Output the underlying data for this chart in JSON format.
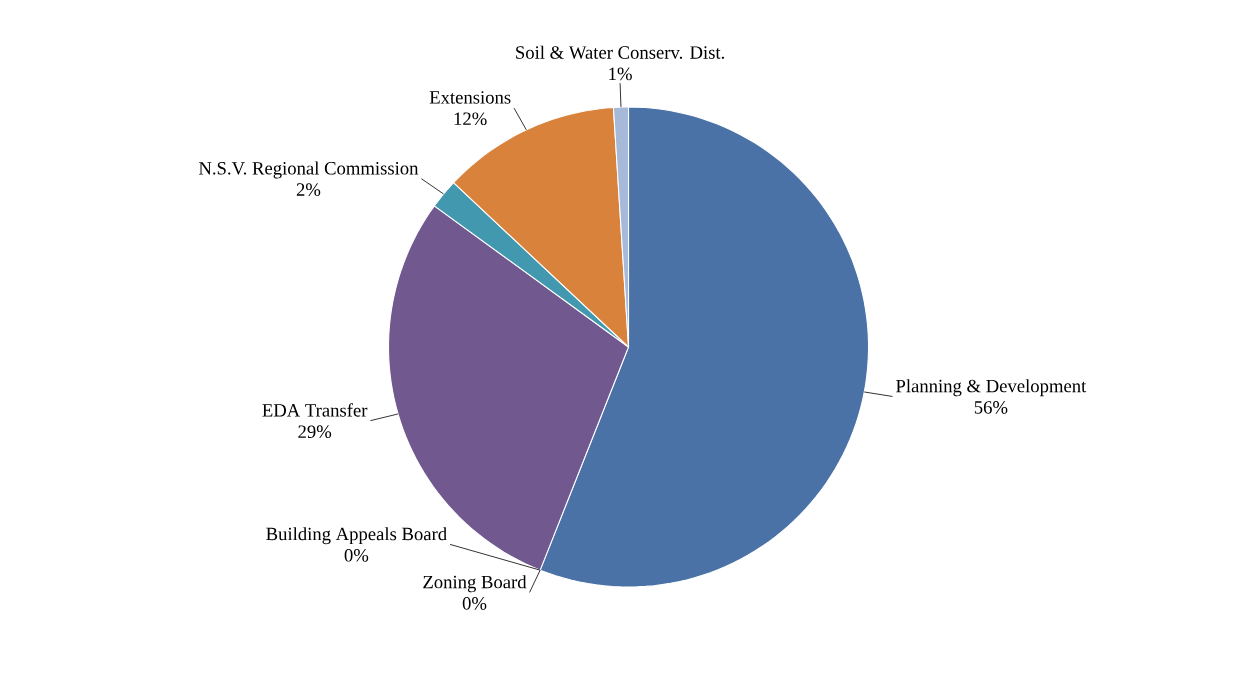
{
  "chart_data": {
    "type": "pie",
    "categories": [
      "Planning & Development",
      "Zoning Board",
      "Building Appeals Board",
      "EDA Transfer",
      "N.S.V. Regional Commission",
      "Extensions",
      "Soil & Water Conserv. Dist."
    ],
    "values": [
      56,
      0,
      0,
      29,
      2,
      12,
      1
    ],
    "value_labels": [
      "56%",
      "0%",
      "0%",
      "29%",
      "2%",
      "12%",
      "1%"
    ],
    "colors": [
      "#4a72a6",
      "#a93f3a",
      "#8aa64c",
      "#71588f",
      "#4198af",
      "#d9823b",
      "#a6b9d9"
    ]
  }
}
